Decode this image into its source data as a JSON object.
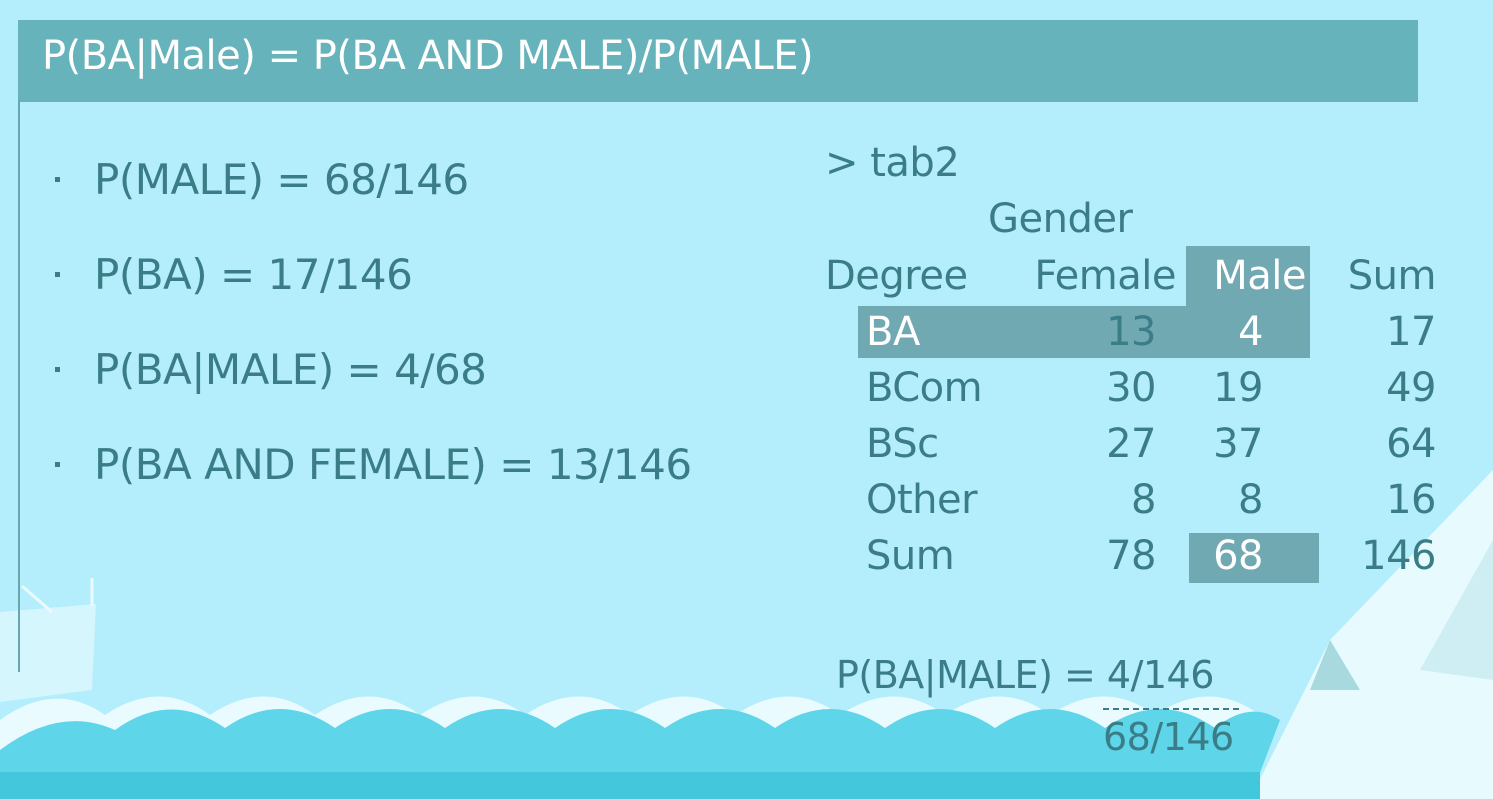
{
  "title": "P(BA|Male) = P(BA AND MALE)/P(MALE)",
  "bullets": [
    "P(MALE) = 68/146",
    "P(BA) = 17/146",
    "P(BA|MALE) = 4/68",
    "P(BA AND FEMALE) = 13/146"
  ],
  "console": {
    "prompt": "> tab2",
    "col_var": "Gender",
    "row_var": "Degree",
    "columns": [
      "Female",
      "Male",
      "Sum"
    ],
    "rows": [
      {
        "label": "BA",
        "values": [
          "13",
          "4",
          "17"
        ]
      },
      {
        "label": "BCom",
        "values": [
          "30",
          "19",
          "49"
        ]
      },
      {
        "label": "BSc",
        "values": [
          "27",
          "37",
          "64"
        ]
      },
      {
        "label": "Other",
        "values": [
          "8",
          "8",
          "16"
        ]
      },
      {
        "label": "Sum",
        "values": [
          "78",
          "68",
          "146"
        ]
      }
    ]
  },
  "equation": {
    "lhs": "P(BA|MALE) = 4/146",
    "denominator": "68/146"
  },
  "colors": {
    "background": "#b4edfb",
    "title_bar": "#67b3bb",
    "highlight": "#70a9b2",
    "text": "#3a7d87",
    "wave_light": "#e9fbff",
    "wave_dark": "#5ed5e8"
  }
}
